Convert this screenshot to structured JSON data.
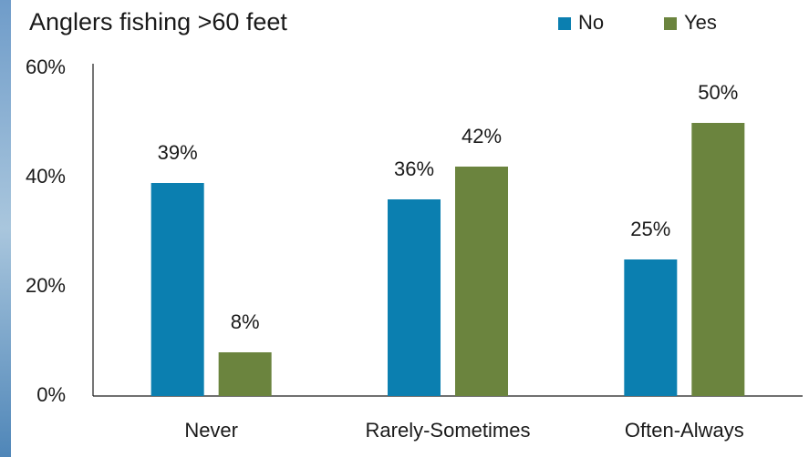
{
  "chart_data": {
    "type": "bar",
    "title": "Anglers fishing >60 feet",
    "categories": [
      "Never",
      "Rarely-Sometimes",
      "Often-Always"
    ],
    "series": [
      {
        "name": "No",
        "color": "#0b7fb0",
        "values": [
          39,
          36,
          25
        ],
        "value_labels": [
          "39%",
          "36%",
          "25%"
        ]
      },
      {
        "name": "Yes",
        "color": "#6b843e",
        "values": [
          8,
          42,
          50
        ],
        "value_labels": [
          "8%",
          "42%",
          "50%"
        ]
      }
    ],
    "ylim": [
      0,
      60
    ],
    "yticks": [
      {
        "value": 0,
        "label": "0%"
      },
      {
        "value": 20,
        "label": "20%"
      },
      {
        "value": 40,
        "label": "40%"
      },
      {
        "value": 60,
        "label": "60%"
      }
    ],
    "grid": false,
    "legend": "top-right"
  }
}
